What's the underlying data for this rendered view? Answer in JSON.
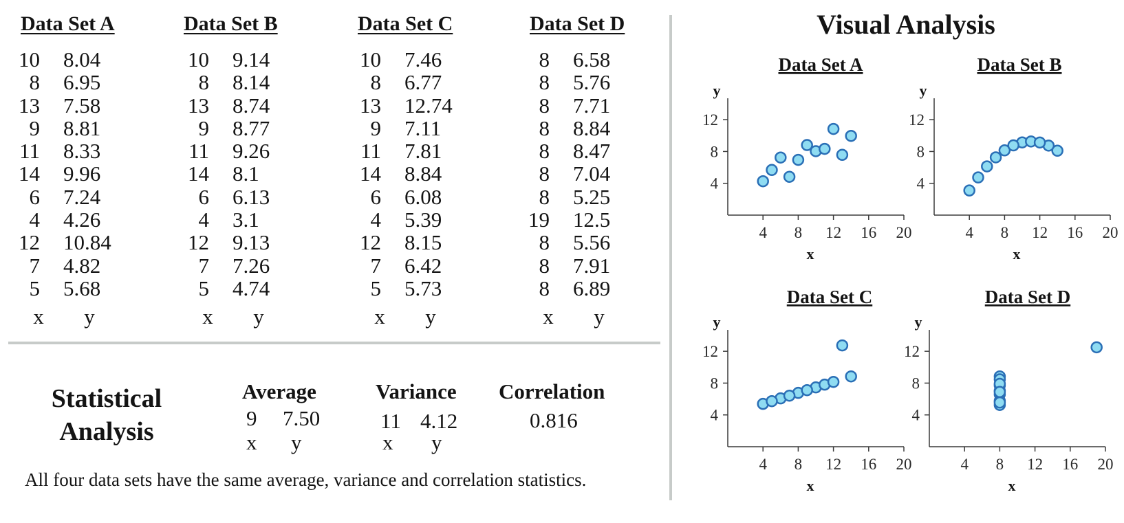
{
  "datasets": [
    {
      "title": "Data Set A",
      "x": [
        "10",
        "8",
        "13",
        "9",
        "11",
        "14",
        "6",
        "4",
        "12",
        "7",
        "5"
      ],
      "y": [
        "8.04",
        "6.95",
        "7.58",
        "8.81",
        "8.33",
        "9.96",
        "7.24",
        "4.26",
        "10.84",
        "4.82",
        "5.68"
      ]
    },
    {
      "title": "Data Set B",
      "x": [
        "10",
        "8",
        "13",
        "9",
        "11",
        "14",
        "6",
        "4",
        "12",
        "7",
        "5"
      ],
      "y": [
        "9.14",
        "8.14",
        "8.74",
        "8.77",
        "9.26",
        "8.1",
        "6.13",
        "3.1",
        "9.13",
        "7.26",
        "4.74"
      ]
    },
    {
      "title": "Data Set C",
      "x": [
        "10",
        "8",
        "13",
        "9",
        "11",
        "14",
        "6",
        "4",
        "12",
        "7",
        "5"
      ],
      "y": [
        "7.46",
        "6.77",
        "12.74",
        "7.11",
        "7.81",
        "8.84",
        "6.08",
        "5.39",
        "8.15",
        "6.42",
        "5.73"
      ]
    },
    {
      "title": "Data Set D",
      "x": [
        "8",
        "8",
        "8",
        "8",
        "8",
        "8",
        "8",
        "19",
        "8",
        "8",
        "8"
      ],
      "y": [
        "6.58",
        "5.76",
        "7.71",
        "8.84",
        "8.47",
        "7.04",
        "5.25",
        "12.5",
        "5.56",
        "7.91",
        "6.89"
      ]
    }
  ],
  "axis_labels": {
    "x": "x",
    "y": "y"
  },
  "stats": {
    "title_line1": "Statistical",
    "title_line2": "Analysis",
    "average_label": "Average",
    "average_x": "9",
    "average_y": "7.50",
    "variance_label": "Variance",
    "variance_x": "11",
    "variance_y": "4.12",
    "correlation_label": "Correlation",
    "correlation_value": "0.816"
  },
  "footnote": "All four data sets have the same average, variance and correlation statistics.",
  "visual_title": "Visual Analysis",
  "colors": {
    "marker_fill": "#8fdcf2",
    "marker_stroke": "#2a6fb6",
    "divider": "#c7cbc9"
  },
  "chart_data": [
    {
      "type": "scatter",
      "title": "Data Set A",
      "xlabel": "x",
      "ylabel": "y",
      "xlim": [
        0,
        20
      ],
      "ylim": [
        0,
        14
      ],
      "xticks": [
        4,
        8,
        12,
        16,
        20
      ],
      "yticks": [
        4,
        8,
        12
      ],
      "grid": false,
      "x": [
        10,
        8,
        13,
        9,
        11,
        14,
        6,
        4,
        12,
        7,
        5
      ],
      "y": [
        8.04,
        6.95,
        7.58,
        8.81,
        8.33,
        9.96,
        7.24,
        4.26,
        10.84,
        4.82,
        5.68
      ]
    },
    {
      "type": "scatter",
      "title": "Data Set B",
      "xlabel": "x",
      "ylabel": "y",
      "xlim": [
        0,
        20
      ],
      "ylim": [
        0,
        14
      ],
      "xticks": [
        4,
        8,
        12,
        16,
        20
      ],
      "yticks": [
        4,
        8,
        12
      ],
      "grid": false,
      "x": [
        10,
        8,
        13,
        9,
        11,
        14,
        6,
        4,
        12,
        7,
        5
      ],
      "y": [
        9.14,
        8.14,
        8.74,
        8.77,
        9.26,
        8.1,
        6.13,
        3.1,
        9.13,
        7.26,
        4.74
      ]
    },
    {
      "type": "scatter",
      "title": "Data Set C",
      "xlabel": "x",
      "ylabel": "y",
      "xlim": [
        0,
        20
      ],
      "ylim": [
        0,
        14
      ],
      "xticks": [
        4,
        8,
        12,
        16,
        20
      ],
      "yticks": [
        4,
        8,
        12
      ],
      "grid": false,
      "x": [
        10,
        8,
        13,
        9,
        11,
        14,
        6,
        4,
        12,
        7,
        5
      ],
      "y": [
        7.46,
        6.77,
        12.74,
        7.11,
        7.81,
        8.84,
        6.08,
        5.39,
        8.15,
        6.42,
        5.73
      ]
    },
    {
      "type": "scatter",
      "title": "Data Set D",
      "xlabel": "x",
      "ylabel": "y",
      "xlim": [
        0,
        20
      ],
      "ylim": [
        0,
        14
      ],
      "xticks": [
        4,
        8,
        12,
        16,
        20
      ],
      "yticks": [
        4,
        8,
        12
      ],
      "grid": false,
      "x": [
        8,
        8,
        8,
        8,
        8,
        8,
        8,
        19,
        8,
        8,
        8
      ],
      "y": [
        6.58,
        5.76,
        7.71,
        8.84,
        8.47,
        7.04,
        5.25,
        12.5,
        5.56,
        7.91,
        6.89
      ]
    }
  ]
}
